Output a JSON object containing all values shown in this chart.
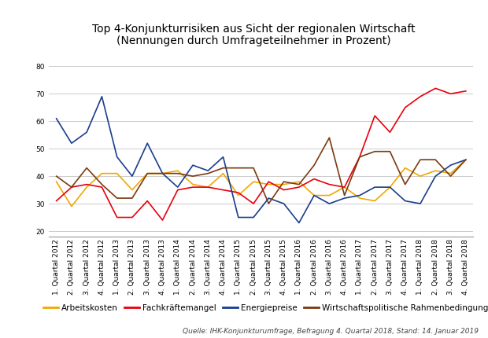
{
  "title_line1": "Top 4-Konjunkturrisiken aus Sicht der regionalen Wirtschaft",
  "title_line2": "(Nennungen durch Umfrageteilnehmer in Prozent)",
  "source": "Quelle: IHK-Konjunkturumfrage, Befragung 4. Quartal 2018, Stand: 14. Januar 2019",
  "x_labels": [
    "1. Quartal 2012",
    "2. Quartal 2012",
    "3. Quartal 2012",
    "4. Quartal 2012",
    "1. Quartal 2013",
    "2. Quartal 2013",
    "3. Quartal 2013",
    "4. Quartal 2013",
    "1. Quartal 2014",
    "2. Quartal 2014",
    "3. Quartal 2014",
    "4. Quartal 2014",
    "1. Quartal 2015",
    "2. Quartal 2015",
    "3. Quartal 2015",
    "4. Quartal 2015",
    "1. Quartal 2016",
    "2. Quartal 2016",
    "3. Quartal 2016",
    "4. Quartal 2016",
    "1. Quartal 2017",
    "2. Quartal 2017",
    "3. Quartal 2017",
    "4. Quartal 2017",
    "1. Quartal 2018",
    "2. Quartal 2018",
    "3. Quartal 2018",
    "4. Quartal 2018"
  ],
  "arbeitskosten": [
    38,
    29,
    36,
    41,
    41,
    35,
    41,
    41,
    42,
    37,
    36,
    41,
    33,
    38,
    37,
    37,
    38,
    33,
    33,
    36,
    32,
    31,
    36,
    43,
    40,
    42,
    41,
    46
  ],
  "fachkraeftemangel": [
    31,
    36,
    37,
    36,
    25,
    25,
    31,
    24,
    35,
    36,
    36,
    35,
    34,
    30,
    38,
    35,
    36,
    39,
    37,
    36,
    47,
    62,
    56,
    65,
    69,
    72,
    70,
    71
  ],
  "energiepreise": [
    61,
    52,
    56,
    69,
    47,
    40,
    52,
    41,
    36,
    44,
    42,
    47,
    25,
    25,
    32,
    30,
    23,
    33,
    30,
    32,
    33,
    36,
    36,
    31,
    30,
    40,
    44,
    46
  ],
  "wirtschaft_rahmen": [
    40,
    36,
    43,
    37,
    32,
    32,
    41,
    41,
    41,
    40,
    41,
    43,
    43,
    43,
    30,
    38,
    37,
    44,
    54,
    33,
    47,
    49,
    49,
    37,
    46,
    46,
    40,
    46
  ],
  "colors": {
    "arbeitskosten": "#f0a800",
    "fachkraeftemangel": "#e8000d",
    "energiepreise": "#1a3d8f",
    "wirtschaft_rahmen": "#7b3a10"
  },
  "legend_labels": {
    "arbeitskosten": "Arbeitskosten",
    "fachkraeftemangel": "Fachkräftemangel",
    "energiepreise": "Energiepreise",
    "wirtschaft_rahmen": "Wirtschaftspolitische Rahmenbedingungen"
  },
  "ylim": [
    18,
    82
  ],
  "yticks": [
    20,
    30,
    40,
    50,
    60,
    70,
    80
  ],
  "background_color": "#ffffff",
  "grid_color": "#cccccc",
  "title_fontsize": 10,
  "axis_fontsize": 6.5,
  "legend_fontsize": 7.5,
  "source_fontsize": 6.5
}
